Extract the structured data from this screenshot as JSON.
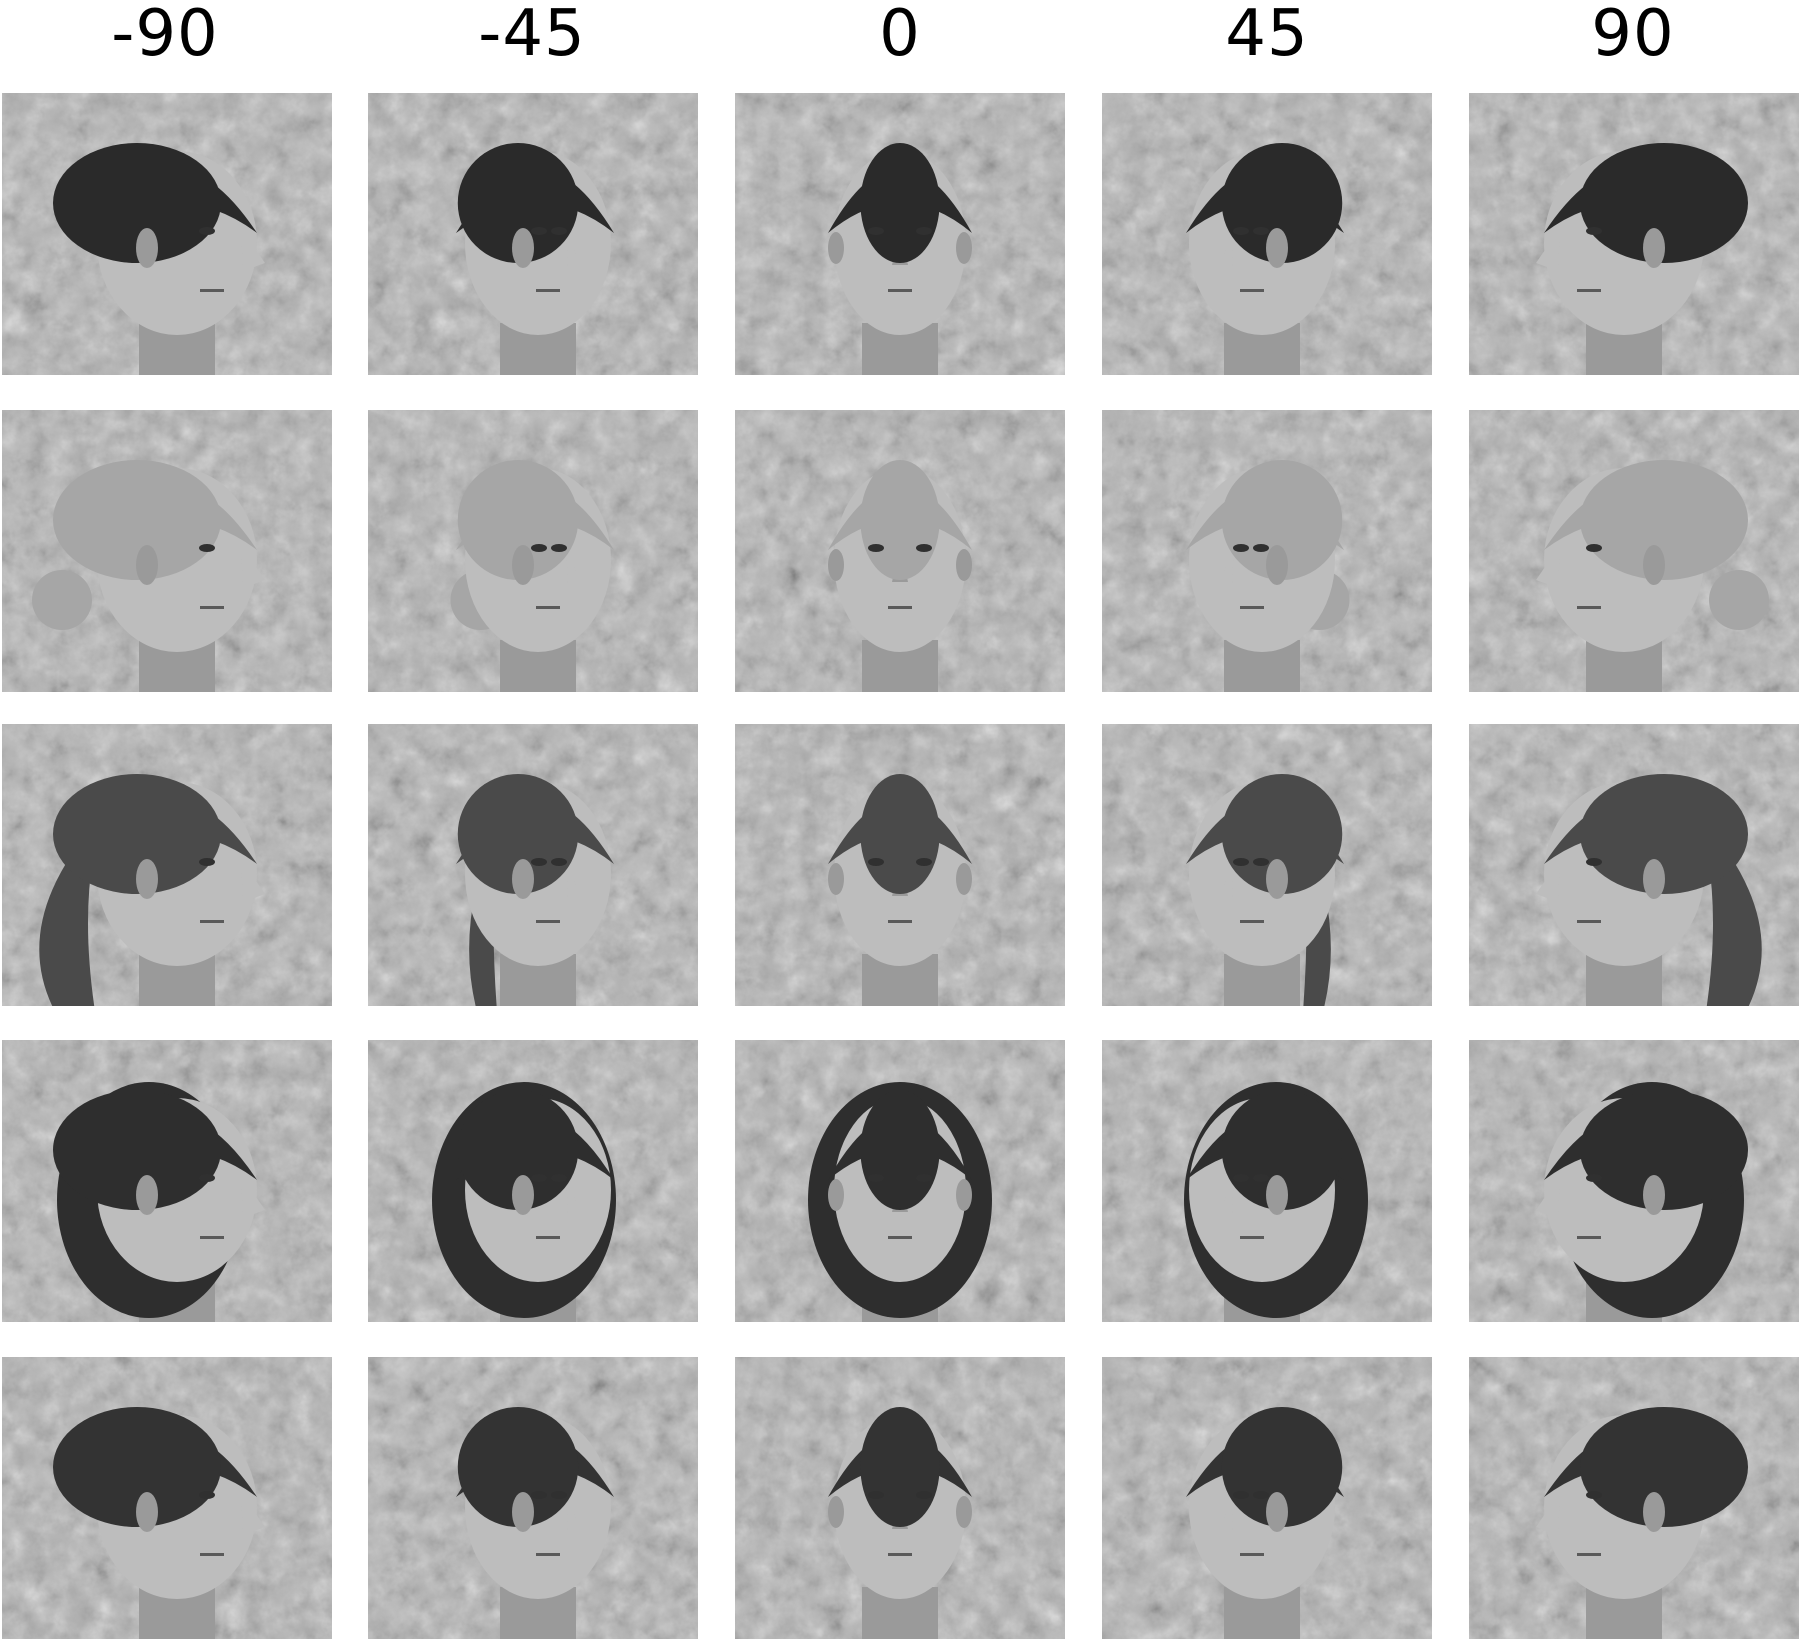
{
  "columns": [
    "-90",
    "-45",
    "0",
    "45",
    "90"
  ],
  "palette": {
    "background": "#ffffff",
    "noise_light": "#b4b4b4",
    "noise_dark": "#3c3c3c",
    "skin": "#bdbdbd",
    "skin_shadow": "#9a9a9a",
    "shirt": "#1a1a1a"
  },
  "rows": [
    {
      "person": "male-dark-hair",
      "hair": "#2a2a2a",
      "hair_style": "short",
      "sex": "male"
    },
    {
      "person": "female-blonde-bun",
      "hair": "#a6a6a6",
      "hair_style": "bun",
      "sex": "female"
    },
    {
      "person": "female-ponytail",
      "hair": "#4a4a4a",
      "hair_style": "ponytail",
      "sex": "female"
    },
    {
      "person": "female-bob",
      "hair": "#2e2e2e",
      "hair_style": "bob",
      "sex": "female"
    },
    {
      "person": "male-curly-hair",
      "hair": "#333333",
      "hair_style": "short",
      "sex": "male"
    }
  ]
}
